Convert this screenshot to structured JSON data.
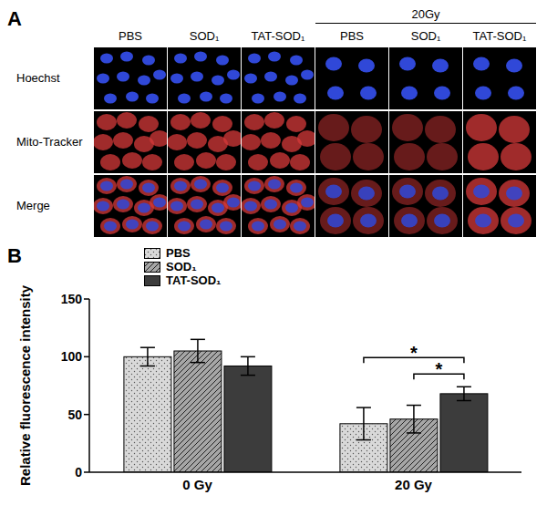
{
  "panel_a": {
    "label": "A",
    "group": {
      "label": "20Gy",
      "columns": [
        3,
        4,
        5
      ]
    },
    "columns": [
      "PBS",
      "SOD₁",
      "TAT-SOD₁",
      "PBS",
      "SOD₁",
      "TAT-SOD₁"
    ],
    "rows": [
      "Hoechst",
      "Mito-Tracker",
      "Merge"
    ]
  },
  "chart_data": {
    "panel_label": "B",
    "type": "bar",
    "categories": [
      "0 Gy",
      "20 Gy"
    ],
    "series": [
      {
        "name": "PBS",
        "color": "#d9d9d9",
        "values": [
          100,
          42
        ],
        "errors": [
          8,
          14
        ]
      },
      {
        "name": "SOD₁",
        "color": "#a6a6a6",
        "values": [
          105,
          46
        ],
        "errors": [
          10,
          12
        ]
      },
      {
        "name": "TAT-SOD₁",
        "color": "#3c3c3c",
        "values": [
          92,
          68
        ],
        "errors": [
          8,
          6
        ]
      }
    ],
    "ylabel": "Relative fluorescence intensity",
    "ylim": [
      0,
      150
    ],
    "yticks": [
      0,
      50,
      100,
      150
    ],
    "legend": "top left",
    "significance": [
      {
        "category": "20 Gy",
        "from": "PBS",
        "to": "TAT-SOD₁",
        "label": "*"
      },
      {
        "category": "20 Gy",
        "from": "SOD₁",
        "to": "TAT-SOD₁",
        "label": "*"
      }
    ]
  }
}
